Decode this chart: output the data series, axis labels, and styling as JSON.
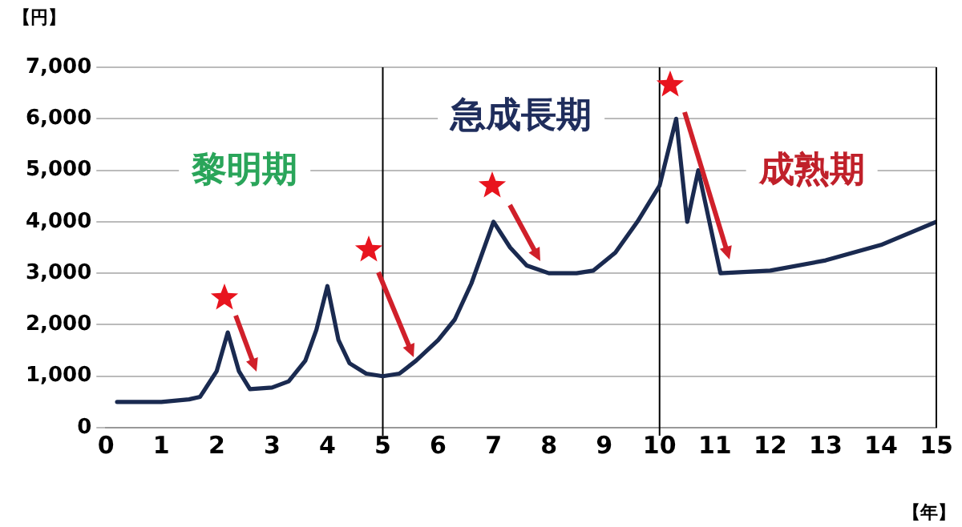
{
  "chart_data": {
    "type": "line",
    "ylabel": "【円】",
    "xlabel": "【年】",
    "x": [
      0.2,
      1,
      1.5,
      1.7,
      2,
      2.2,
      2.4,
      2.6,
      3,
      3.3,
      3.6,
      3.8,
      4,
      4.2,
      4.4,
      4.7,
      5,
      5.3,
      5.6,
      6,
      6.3,
      6.6,
      7,
      7.3,
      7.6,
      8,
      8.5,
      8.8,
      9.2,
      9.6,
      10,
      10.3,
      10.5,
      10.7,
      11.1,
      12,
      13,
      14,
      15
    ],
    "series": [
      {
        "color": "#1a2a50",
        "values": [
          500,
          500,
          550,
          600,
          1100,
          1850,
          1100,
          750,
          780,
          900,
          1300,
          1900,
          2750,
          1700,
          1250,
          1050,
          1000,
          1050,
          1300,
          1700,
          2100,
          2800,
          4000,
          3500,
          3150,
          3000,
          3000,
          3050,
          3400,
          4000,
          4700,
          6000,
          4000,
          5000,
          3000,
          3050,
          3250,
          3550,
          4000
        ]
      }
    ],
    "xlim": [
      0,
      15
    ],
    "xticks": [
      0,
      1,
      2,
      3,
      4,
      5,
      6,
      7,
      8,
      9,
      10,
      11,
      12,
      13,
      14,
      15
    ],
    "ylim": [
      0,
      7000
    ],
    "yticks": [
      0,
      {
        "value": 1000,
        "label": "1,000"
      },
      {
        "value": 2000,
        "label": "2,000"
      },
      {
        "value": 3000,
        "label": "3,000"
      },
      {
        "value": 4000,
        "label": "4,000"
      },
      {
        "value": 5000,
        "label": "5,000"
      },
      {
        "value": 6000,
        "label": "6,000"
      },
      {
        "value": 7000,
        "label": "7,000"
      }
    ],
    "grid": "y",
    "legend": false,
    "marker": "none",
    "line_style": "solid",
    "ref_lines": [
      {
        "axis": "x",
        "value": 5,
        "color": "#000000"
      },
      {
        "axis": "x",
        "value": 10,
        "color": "#000000"
      }
    ],
    "annotations": [
      "黎明期",
      "急成長期",
      "成熟期"
    ]
  }
}
